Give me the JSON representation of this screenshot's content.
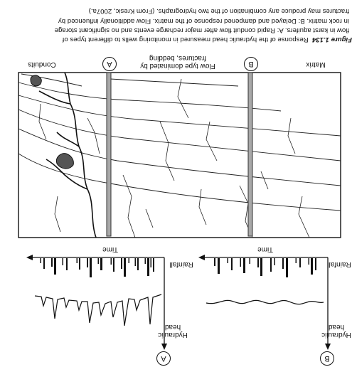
{
  "diagram": {
    "labels": {
      "conduits": "Conduits",
      "fractures_line1": "Flow type dominated by",
      "fractures_line2": "fractures, bedding",
      "matrix": "Matrix",
      "well_a": "A",
      "well_b": "B"
    }
  },
  "hydrographs": {
    "a": {
      "id": "A",
      "y_label_1": "Hydraulic",
      "y_label_2": "head",
      "rainfall_label": "Rainfall",
      "time_label": "Time"
    },
    "b": {
      "id": "B",
      "y_label_1": "Hydraulic",
      "y_label_2": "head",
      "rainfall_label": "Rainfall",
      "time_label": "Time"
    }
  },
  "caption": {
    "figure_label": "Figure 1.134",
    "line1": "Response of the hydraulic head measured in monitoring wells to different types of",
    "line2": "flow in karst aquifers. A: Rapid conduit flow after major recharge events and no significant storage",
    "line3": "in rock matrix. B: Delayed and dampened response of the matrix. Flow additionally influenced by",
    "line4": "fractures may produce any combination of the two hydrographs. (From Kresic, 2007a.)"
  }
}
